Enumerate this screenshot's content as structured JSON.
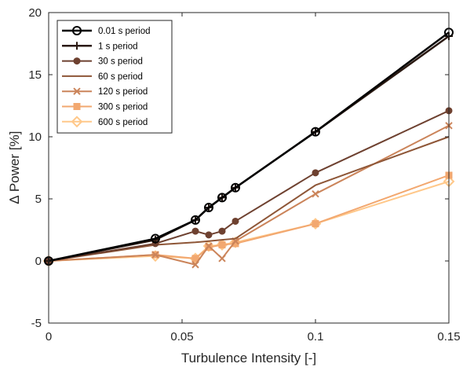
{
  "chart_data": {
    "type": "line",
    "xlabel": "Turbulence Intensity [-]",
    "ylabel": "∆ Power [%]",
    "xlim": [
      0,
      0.15
    ],
    "ylim": [
      -5,
      20
    ],
    "x_ticks": [
      0,
      0.05,
      0.1,
      0.15
    ],
    "x_tick_labels": [
      "0",
      "0.05",
      "0.1",
      "0.15"
    ],
    "y_ticks": [
      -5,
      0,
      5,
      10,
      15,
      20
    ],
    "y_tick_labels": [
      "-5",
      "0",
      "5",
      "10",
      "15",
      "20"
    ],
    "grid": false,
    "legend_position": "top-left",
    "series": [
      {
        "name": "0.01 s period",
        "color": "#000000",
        "marker": "circle-open",
        "x": [
          0,
          0.04,
          0.055,
          0.06,
          0.065,
          0.07,
          0.1,
          0.15
        ],
        "y": [
          0,
          1.8,
          3.3,
          4.3,
          5.1,
          5.9,
          10.4,
          18.4
        ]
      },
      {
        "name": "1 s period",
        "color": "#2b1a12",
        "marker": "plus",
        "x": [
          0,
          0.04,
          0.055,
          0.06,
          0.065,
          0.07,
          0.1,
          0.15
        ],
        "y": [
          0,
          1.7,
          3.3,
          4.3,
          5.1,
          5.9,
          10.4,
          18.1
        ]
      },
      {
        "name": "30 s period",
        "color": "#6e4130",
        "marker": "circle-filled",
        "x": [
          0,
          0.04,
          0.055,
          0.06,
          0.065,
          0.07,
          0.1,
          0.15
        ],
        "y": [
          0,
          1.4,
          2.4,
          2.1,
          2.4,
          3.2,
          7.1,
          12.1
        ]
      },
      {
        "name": "60 s period",
        "color": "#8e5637",
        "marker": "none",
        "x": [
          0,
          0.04,
          0.055,
          0.06,
          0.065,
          0.07,
          0.1,
          0.15
        ],
        "y": [
          0,
          1.3,
          1.5,
          1.6,
          1.7,
          1.8,
          6.1,
          10.0
        ]
      },
      {
        "name": "120 s period",
        "color": "#cb845a",
        "marker": "x",
        "x": [
          0,
          0.04,
          0.055,
          0.06,
          0.065,
          0.07,
          0.1,
          0.15
        ],
        "y": [
          0,
          0.5,
          -0.3,
          1.2,
          0.2,
          1.6,
          5.4,
          10.9
        ]
      },
      {
        "name": "300 s period",
        "color": "#f2a870",
        "marker": "square",
        "x": [
          0,
          0.04,
          0.055,
          0.06,
          0.065,
          0.07,
          0.1,
          0.15
        ],
        "y": [
          0,
          0.5,
          0.2,
          1.1,
          1.3,
          1.4,
          3.0,
          6.9
        ]
      },
      {
        "name": "600 s period",
        "color": "#ffc88a",
        "marker": "diamond",
        "x": [
          0,
          0.04,
          0.055,
          0.06,
          0.065,
          0.07,
          0.1,
          0.15
        ],
        "y": [
          0,
          0.4,
          0.2,
          1.2,
          1.3,
          1.5,
          3.0,
          6.4
        ]
      }
    ]
  }
}
